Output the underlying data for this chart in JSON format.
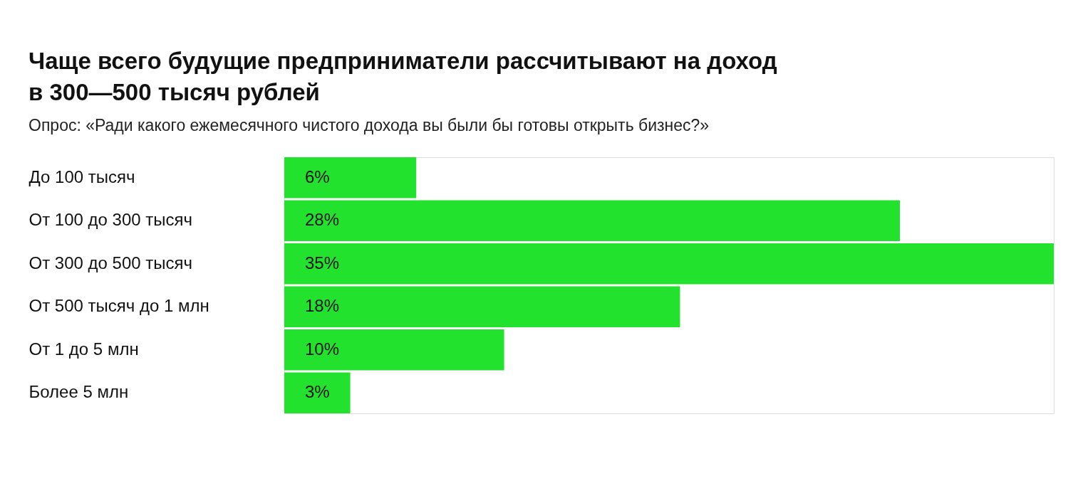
{
  "chart_data": {
    "type": "bar",
    "orientation": "horizontal",
    "title": "Чаще всего будущие предприниматели рассчитывают на доход в 300—500 тысяч рублей",
    "subtitle": "Опрос: «Ради какого ежемесячного чистого дохода вы были бы готовы открыть бизнес?»",
    "categories": [
      "До 100 тысяч",
      "От 100 до 300 тысяч",
      "От 300 до 500 тысяч",
      "От 500 тысяч до 1 млн",
      "От 1 до 5 млн",
      "Более 5 млн"
    ],
    "values": [
      6,
      28,
      35,
      18,
      10,
      3
    ],
    "value_labels": [
      "6%",
      "28%",
      "35%",
      "18%",
      "10%",
      "3%"
    ],
    "color": "#22e22e",
    "xlim": [
      0,
      35
    ],
    "grid": false
  }
}
